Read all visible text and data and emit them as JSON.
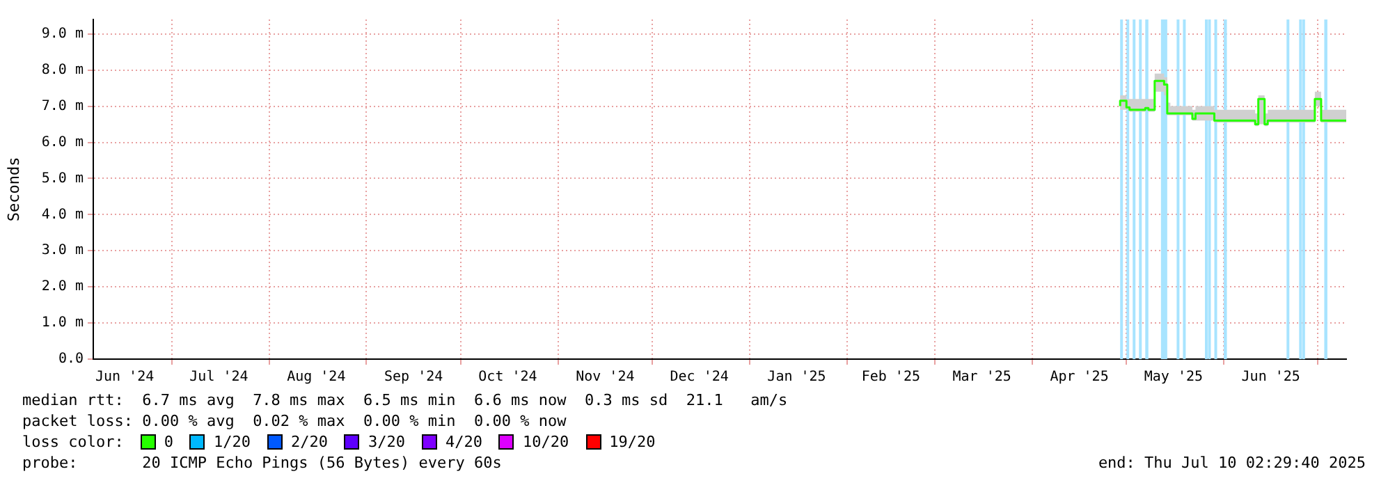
{
  "chart_data": {
    "type": "step",
    "ylabel": "Seconds",
    "legend_title": "loss color:",
    "legend": "bottom",
    "grid": true,
    "xlim": [
      "2024-06-06",
      "2025-07-10"
    ],
    "xticks": [
      {
        "value": "2024-06-16",
        "label": "Jun '24"
      },
      {
        "value": "2024-07-01",
        "label": null
      },
      {
        "value": "2024-07-16",
        "label": "Jul '24"
      },
      {
        "value": "2024-08-01",
        "label": null
      },
      {
        "value": "2024-08-16",
        "label": "Aug '24"
      },
      {
        "value": "2024-09-01",
        "label": null
      },
      {
        "value": "2024-09-16",
        "label": "Sep '24"
      },
      {
        "value": "2024-10-01",
        "label": null
      },
      {
        "value": "2024-10-16",
        "label": "Oct '24"
      },
      {
        "value": "2024-11-01",
        "label": null
      },
      {
        "value": "2024-11-16",
        "label": "Nov '24"
      },
      {
        "value": "2024-12-01",
        "label": null
      },
      {
        "value": "2024-12-16",
        "label": "Dec '24"
      },
      {
        "value": "2025-01-01",
        "label": null
      },
      {
        "value": "2025-01-16",
        "label": "Jan '25"
      },
      {
        "value": "2025-02-01",
        "label": null
      },
      {
        "value": "2025-02-15",
        "label": "Feb '25"
      },
      {
        "value": "2025-03-01",
        "label": null
      },
      {
        "value": "2025-03-16",
        "label": "Mar '25"
      },
      {
        "value": "2025-04-01",
        "label": null
      },
      {
        "value": "2025-04-16",
        "label": "Apr '25"
      },
      {
        "value": "2025-05-01",
        "label": null
      },
      {
        "value": "2025-05-16",
        "label": "May '25"
      },
      {
        "value": "2025-06-01",
        "label": null
      },
      {
        "value": "2025-06-16",
        "label": "Jun '25"
      },
      {
        "value": "2025-07-01",
        "label": null
      }
    ],
    "ylim": [
      0,
      9.4
    ],
    "yticks": [
      {
        "value": 0,
        "label": "0.0"
      },
      {
        "value": 1,
        "label": "1.0 m"
      },
      {
        "value": 2,
        "label": "2.0 m"
      },
      {
        "value": 3,
        "label": "3.0 m"
      },
      {
        "value": 4,
        "label": "4.0 m"
      },
      {
        "value": 5,
        "label": "5.0 m"
      },
      {
        "value": 6,
        "label": "6.0 m"
      },
      {
        "value": 7,
        "label": "7.0 m"
      },
      {
        "value": 8,
        "label": "8.0 m"
      },
      {
        "value": 9,
        "label": "9.0 m"
      }
    ],
    "series": [
      {
        "name": "0",
        "color": "#26ff00",
        "x": [
          "2025-04-29",
          "2025-05-01",
          "2025-05-02",
          "2025-05-07",
          "2025-05-08",
          "2025-05-10",
          "2025-05-13",
          "2025-05-14",
          "2025-05-15",
          "2025-05-22",
          "2025-05-23",
          "2025-05-29",
          "2025-05-30",
          "2025-06-11",
          "2025-06-12",
          "2025-06-14",
          "2025-06-15",
          "2025-06-30",
          "2025-07-02",
          "2025-07-03",
          "2025-07-10"
        ],
        "values": [
          7.0,
          7.15,
          6.97,
          6.9,
          6.95,
          6.9,
          7.7,
          7.6,
          6.8,
          6.8,
          6.65,
          6.8,
          6.6,
          6.6,
          6.5,
          7.2,
          6.5,
          6.6,
          7.2,
          6.6,
          6.6
        ],
        "lower": [
          6.95,
          6.9,
          6.9,
          6.85,
          6.9,
          6.85,
          7.4,
          7.3,
          6.75,
          6.75,
          6.6,
          6.6,
          6.55,
          6.55,
          6.45,
          6.5,
          6.45,
          6.55,
          7.0,
          6.55,
          6.55
        ],
        "upper": [
          7.5,
          7.3,
          7.2,
          7.2,
          7.2,
          7.2,
          7.9,
          7.8,
          7.1,
          7.0,
          6.9,
          7.0,
          6.9,
          6.9,
          6.8,
          7.3,
          6.8,
          6.9,
          7.4,
          6.9,
          6.9
        ]
      },
      {
        "name": "1/20",
        "color": "#00b8ff"
      },
      {
        "name": "2/20",
        "color": "#0059ff"
      },
      {
        "name": "3/20",
        "color": "#5e00ff"
      },
      {
        "name": "4/20",
        "color": "#7e00ff"
      },
      {
        "name": "10/20",
        "color": "#dd00ff"
      },
      {
        "name": "19/20",
        "color": "#ff0000"
      }
    ],
    "bands": [
      {
        "axis": "x",
        "from": "2025-04-29",
        "to": "2025-04-29",
        "color": "#a8e4ff"
      },
      {
        "axis": "x",
        "from": "2025-05-01",
        "to": "2025-05-01",
        "color": "#a8e4ff"
      },
      {
        "axis": "x",
        "from": "2025-05-03",
        "to": "2025-05-03",
        "color": "#a8e4ff"
      },
      {
        "axis": "x",
        "from": "2025-05-05",
        "to": "2025-05-05",
        "color": "#a8e4ff"
      },
      {
        "axis": "x",
        "from": "2025-05-07",
        "to": "2025-05-08",
        "color": "#a8e4ff"
      },
      {
        "axis": "x",
        "from": "2025-05-12",
        "to": "2025-05-14",
        "color": "#a8e4ff"
      },
      {
        "axis": "x",
        "from": "2025-05-17",
        "to": "2025-05-17",
        "color": "#a8e4ff"
      },
      {
        "axis": "x",
        "from": "2025-05-19",
        "to": "2025-05-19",
        "color": "#a8e4ff"
      },
      {
        "axis": "x",
        "from": "2025-05-26",
        "to": "2025-05-26",
        "color": "#a8e4ff"
      },
      {
        "axis": "x",
        "from": "2025-05-27",
        "to": "2025-05-27",
        "color": "#a8e4ff"
      },
      {
        "axis": "x",
        "from": "2025-05-29",
        "to": "2025-05-29",
        "color": "#a8e4ff"
      },
      {
        "axis": "x",
        "from": "2025-06-01",
        "to": "2025-06-02",
        "color": "#a8e4ff"
      },
      {
        "axis": "x",
        "from": "2025-06-21",
        "to": "2025-06-21",
        "color": "#a8e4ff"
      },
      {
        "axis": "x",
        "from": "2025-06-25",
        "to": "2025-06-25",
        "color": "#a8e4ff"
      },
      {
        "axis": "x",
        "from": "2025-06-26",
        "to": "2025-06-26",
        "color": "#a8e4ff"
      },
      {
        "axis": "x",
        "from": "2025-07-03",
        "to": "2025-07-04",
        "color": "#a8e4ff"
      }
    ],
    "annotations": [
      "median rtt:  6.7 ms avg  7.8 ms max  6.5 ms min  6.6 ms now  0.3 ms sd  21.1   am/s",
      "packet loss: 0.00 % avg  0.02 % max  0.00 % min  0.00 % now",
      "probe:       20 ICMP Echo Pings (56 Bytes) every 60s",
      "end: Thu Jul 10 02:29:40 2025"
    ]
  }
}
